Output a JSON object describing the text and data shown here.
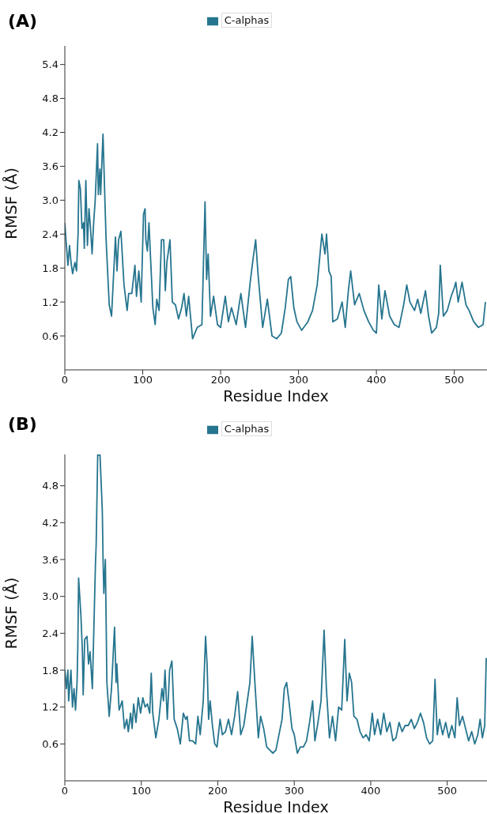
{
  "chart_data": [
    {
      "type": "line",
      "title": "(A)",
      "xlabel": "Residue Index",
      "ylabel": "RMSF (Å)",
      "legend": "top",
      "marker": "none",
      "xlim": [
        0,
        542
      ],
      "xticks": [
        0,
        100,
        200,
        300,
        400,
        500
      ],
      "ylim": [
        0,
        5.73
      ],
      "yticks": [
        0.6,
        1.2,
        1.8,
        2.4,
        {
          "value": 3,
          "label": "3.0"
        },
        3.6,
        4.2,
        4.8,
        5.4
      ],
      "series": [
        {
          "name": "C-alphas",
          "color": "#26758f",
          "x": [
            0,
            2,
            4,
            6,
            8,
            10,
            13,
            15,
            17,
            18,
            20,
            22,
            24,
            25,
            27,
            29,
            31,
            33,
            35,
            37,
            39,
            42,
            43,
            45,
            46,
            49,
            52,
            53,
            57,
            60,
            65,
            67,
            69,
            72,
            76,
            80,
            82,
            86,
            90,
            92,
            95,
            98,
            101,
            103,
            104,
            106,
            108,
            111,
            113,
            116,
            118,
            121,
            124,
            127,
            129,
            131,
            135,
            138,
            142,
            146,
            150,
            153,
            156,
            159,
            164,
            170,
            176,
            180,
            182,
            184,
            187,
            191,
            196,
            200,
            206,
            210,
            214,
            220,
            226,
            232,
            238,
            242,
            245,
            248,
            254,
            260,
            266,
            272,
            278,
            283,
            287,
            290,
            294,
            298,
            304,
            312,
            318,
            324,
            330,
            334,
            336,
            339,
            342,
            344,
            350,
            356,
            360,
            364,
            367,
            372,
            378,
            384,
            390,
            396,
            400,
            403,
            407,
            411,
            417,
            423,
            429,
            435,
            439,
            443,
            449,
            453,
            457,
            463,
            467,
            471,
            477,
            480,
            482,
            486,
            491,
            496,
            500,
            502,
            505,
            510,
            515,
            519,
            525,
            531,
            537,
            540
          ],
          "values": [
            2.6,
            2.2,
            1.85,
            2.2,
            1.9,
            1.7,
            1.9,
            1.75,
            2.4,
            3.35,
            3.2,
            2.5,
            2.6,
            2.15,
            3.35,
            2.2,
            2.85,
            2.5,
            2.05,
            2.6,
            3.0,
            4.0,
            3.1,
            3.55,
            3.1,
            4.17,
            2.75,
            2.3,
            1.15,
            0.95,
            2.35,
            1.75,
            2.3,
            2.45,
            1.5,
            1.05,
            1.35,
            1.35,
            1.85,
            1.3,
            1.75,
            1.2,
            2.75,
            2.85,
            2.3,
            2.1,
            2.6,
            1.7,
            1.1,
            0.8,
            1.25,
            1.05,
            2.3,
            2.3,
            1.4,
            1.9,
            2.3,
            1.2,
            1.15,
            0.9,
            1.1,
            1.35,
            0.95,
            1.3,
            0.55,
            0.75,
            0.8,
            2.97,
            1.6,
            2.05,
            0.95,
            1.3,
            0.8,
            0.75,
            1.3,
            0.85,
            1.1,
            0.8,
            1.35,
            0.75,
            1.55,
            2.0,
            2.3,
            1.7,
            0.75,
            1.25,
            0.6,
            0.55,
            0.65,
            1.1,
            1.6,
            1.65,
            1.1,
            0.85,
            0.7,
            0.85,
            1.05,
            1.5,
            2.4,
            2.05,
            2.4,
            1.75,
            1.65,
            0.85,
            0.9,
            1.2,
            0.75,
            1.4,
            1.75,
            1.15,
            1.35,
            1.05,
            0.85,
            0.7,
            0.65,
            1.5,
            0.9,
            1.4,
            0.95,
            0.8,
            0.75,
            1.15,
            1.5,
            1.2,
            1.05,
            1.25,
            1.0,
            1.4,
            0.95,
            0.65,
            0.75,
            1.0,
            1.85,
            0.95,
            1.05,
            1.3,
            1.45,
            1.55,
            1.2,
            1.55,
            1.15,
            1.05,
            0.85,
            0.75,
            0.8,
            1.2
          ]
        }
      ]
    },
    {
      "type": "line",
      "title": "(B)",
      "xlabel": "Residue Index",
      "ylabel": "RMSF (Å)",
      "legend": "top",
      "marker": "none",
      "xlim": [
        0,
        552
      ],
      "xticks": [
        0,
        100,
        200,
        300,
        400,
        500
      ],
      "ylim": [
        0,
        5.31
      ],
      "yticks": [
        0.6,
        1.2,
        1.8,
        2.4,
        {
          "value": 3,
          "label": "3.0"
        },
        3.6,
        4.2,
        4.8
      ],
      "series": [
        {
          "name": "C-alphas",
          "color": "#26758f",
          "x": [
            0,
            2,
            4,
            5,
            8,
            10,
            12,
            14,
            16,
            17,
            18,
            21,
            23,
            24,
            26,
            29,
            31,
            33,
            36,
            40,
            41,
            43,
            46,
            49,
            50,
            51,
            53,
            55,
            58,
            61,
            65,
            67,
            68,
            71,
            75,
            78,
            81,
            83,
            86,
            88,
            90,
            93,
            96,
            99,
            102,
            105,
            108,
            111,
            113,
            115,
            119,
            123,
            127,
            129,
            131,
            134,
            137,
            140,
            143,
            147,
            151,
            155,
            158,
            160,
            163,
            167,
            171,
            174,
            177,
            181,
            184,
            186,
            188,
            190,
            193,
            196,
            199,
            203,
            206,
            210,
            214,
            218,
            222,
            226,
            230,
            234,
            238,
            242,
            245,
            249,
            253,
            256,
            260,
            264,
            268,
            272,
            276,
            280,
            284,
            287,
            290,
            293,
            297,
            300,
            304,
            308,
            312,
            316,
            320,
            324,
            327,
            331,
            335,
            339,
            342,
            346,
            350,
            354,
            358,
            362,
            366,
            369,
            372,
            375,
            378,
            382,
            386,
            390,
            394,
            398,
            402,
            405,
            409,
            413,
            417,
            421,
            425,
            429,
            433,
            437,
            441,
            445,
            449,
            453,
            457,
            461,
            465,
            469,
            473,
            477,
            481,
            484,
            487,
            490,
            494,
            498,
            502,
            506,
            510,
            513,
            516,
            520,
            524,
            528,
            532,
            536,
            540,
            543,
            546,
            549,
            551
          ],
          "values": [
            1.8,
            1.5,
            1.8,
            1.3,
            1.8,
            1.2,
            1.5,
            1.15,
            1.6,
            2.2,
            3.3,
            2.7,
            2.1,
            1.4,
            2.3,
            2.35,
            1.9,
            2.1,
            1.5,
            3.5,
            3.85,
            5.3,
            5.3,
            4.4,
            3.6,
            3.05,
            3.6,
            1.6,
            1.05,
            1.5,
            2.5,
            1.6,
            1.9,
            1.15,
            1.3,
            0.85,
            1.0,
            0.8,
            1.1,
            0.85,
            1.25,
            0.95,
            1.35,
            1.1,
            1.35,
            1.2,
            1.25,
            1.1,
            1.75,
            1.1,
            0.7,
            1.0,
            1.5,
            1.3,
            1.8,
            1.0,
            1.8,
            1.95,
            1.0,
            0.85,
            0.6,
            1.1,
            1.0,
            1.05,
            0.65,
            0.65,
            0.6,
            1.05,
            0.75,
            1.3,
            2.35,
            1.9,
            1.0,
            1.3,
            0.9,
            0.6,
            0.55,
            1.0,
            0.75,
            0.8,
            1.0,
            0.75,
            1.05,
            1.45,
            0.75,
            0.9,
            1.25,
            1.6,
            2.35,
            1.5,
            0.7,
            1.05,
            0.85,
            0.55,
            0.5,
            0.45,
            0.5,
            0.75,
            1.0,
            1.5,
            1.6,
            1.3,
            0.85,
            0.75,
            0.45,
            0.55,
            0.55,
            0.65,
            0.95,
            1.3,
            0.65,
            0.95,
            1.3,
            2.45,
            1.5,
            0.7,
            1.05,
            0.65,
            1.2,
            1.15,
            2.3,
            1.3,
            1.75,
            1.6,
            1.05,
            1.0,
            0.8,
            0.7,
            0.75,
            0.65,
            1.1,
            0.75,
            1.0,
            0.75,
            1.1,
            0.8,
            0.95,
            0.65,
            0.7,
            0.95,
            0.8,
            0.9,
            0.9,
            1.0,
            0.85,
            0.95,
            1.1,
            0.95,
            0.7,
            0.6,
            0.65,
            1.65,
            0.75,
            1.0,
            0.75,
            0.95,
            0.7,
            0.9,
            0.7,
            1.35,
            0.9,
            1.05,
            0.85,
            0.65,
            0.8,
            0.6,
            0.75,
            1.0,
            0.7,
            0.9,
            2.0
          ]
        }
      ]
    }
  ]
}
